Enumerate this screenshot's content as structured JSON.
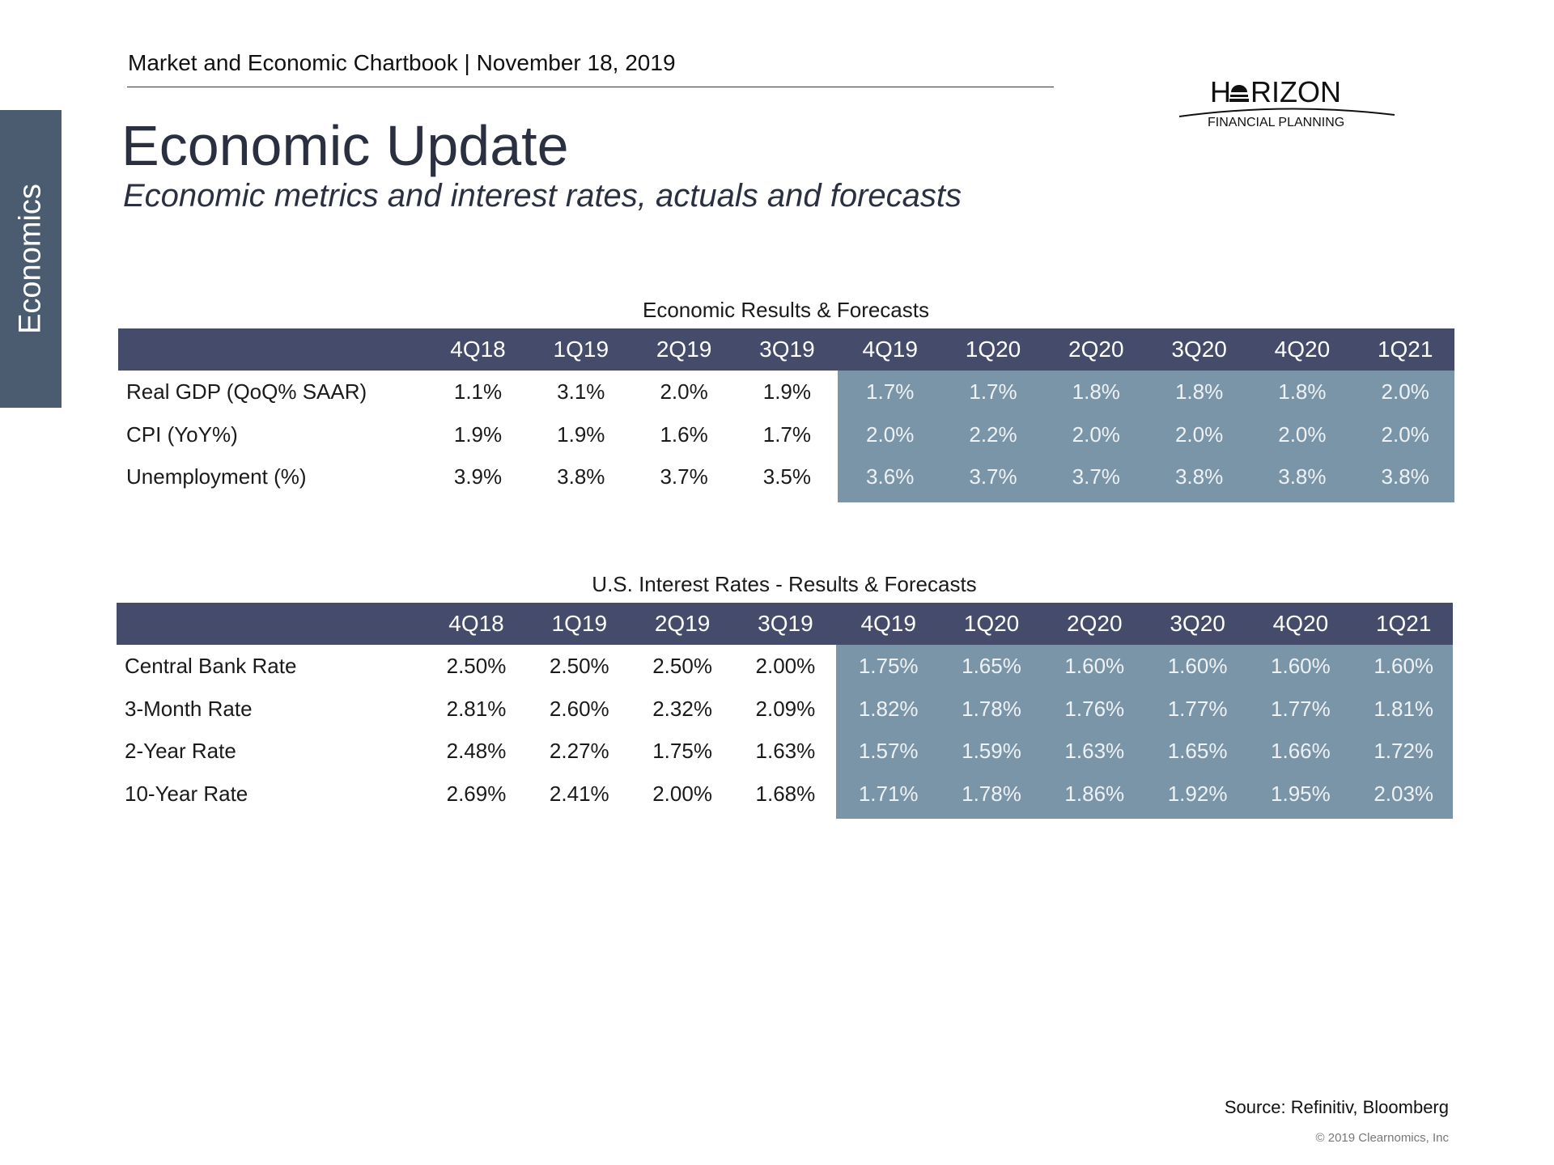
{
  "header": {
    "text": "Market and Economic Chartbook | November 18, 2019"
  },
  "sidebar": {
    "label": "Economics"
  },
  "title": "Economic Update",
  "subtitle": "Economic metrics and interest rates, actuals and forecasts",
  "logo": {
    "name": "HORIZON",
    "tagline": "FINANCIAL PLANNING"
  },
  "colors": {
    "header_bar": "#454b6b",
    "forecast_bg": "#7b95a8",
    "sidebar": "#4c5c70"
  },
  "tables": [
    {
      "title": "Economic Results & Forecasts",
      "columns": [
        "4Q18",
        "1Q19",
        "2Q19",
        "3Q19",
        "4Q19",
        "1Q20",
        "2Q20",
        "3Q20",
        "4Q20",
        "1Q21"
      ],
      "forecast_start_index": 4,
      "rows": [
        {
          "label": "Real GDP (QoQ% SAAR)",
          "values": [
            "1.1%",
            "3.1%",
            "2.0%",
            "1.9%",
            "1.7%",
            "1.7%",
            "1.8%",
            "1.8%",
            "1.8%",
            "2.0%"
          ]
        },
        {
          "label": "CPI (YoY%)",
          "values": [
            "1.9%",
            "1.9%",
            "1.6%",
            "1.7%",
            "2.0%",
            "2.2%",
            "2.0%",
            "2.0%",
            "2.0%",
            "2.0%"
          ]
        },
        {
          "label": "Unemployment (%)",
          "values": [
            "3.9%",
            "3.8%",
            "3.7%",
            "3.5%",
            "3.6%",
            "3.7%",
            "3.7%",
            "3.8%",
            "3.8%",
            "3.8%"
          ]
        }
      ]
    },
    {
      "title": "U.S. Interest Rates - Results & Forecasts",
      "columns": [
        "4Q18",
        "1Q19",
        "2Q19",
        "3Q19",
        "4Q19",
        "1Q20",
        "2Q20",
        "3Q20",
        "4Q20",
        "1Q21"
      ],
      "forecast_start_index": 4,
      "rows": [
        {
          "label": "Central Bank Rate",
          "values": [
            "2.50%",
            "2.50%",
            "2.50%",
            "2.00%",
            "1.75%",
            "1.65%",
            "1.60%",
            "1.60%",
            "1.60%",
            "1.60%"
          ]
        },
        {
          "label": "3-Month Rate",
          "values": [
            "2.81%",
            "2.60%",
            "2.32%",
            "2.09%",
            "1.82%",
            "1.78%",
            "1.76%",
            "1.77%",
            "1.77%",
            "1.81%"
          ]
        },
        {
          "label": "2-Year Rate",
          "values": [
            "2.48%",
            "2.27%",
            "1.75%",
            "1.63%",
            "1.57%",
            "1.59%",
            "1.63%",
            "1.65%",
            "1.66%",
            "1.72%"
          ]
        },
        {
          "label": "10-Year Rate",
          "values": [
            "2.69%",
            "2.41%",
            "2.00%",
            "1.68%",
            "1.71%",
            "1.78%",
            "1.86%",
            "1.92%",
            "1.95%",
            "2.03%"
          ]
        }
      ]
    }
  ],
  "footer": {
    "source": "Source: Refinitiv, Bloomberg",
    "copyright": "© 2019 Clearnomics, Inc"
  }
}
